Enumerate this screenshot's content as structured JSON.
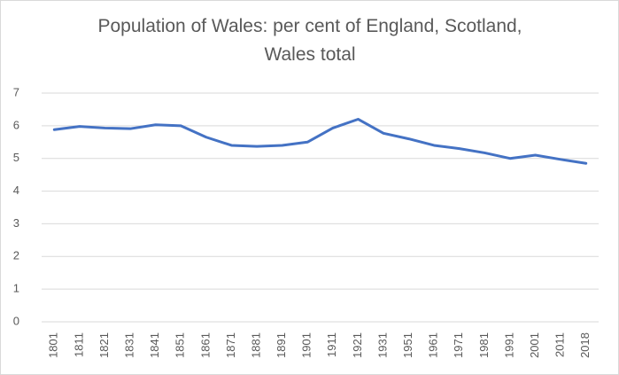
{
  "chart_data": {
    "type": "line",
    "title": "Population of Wales: per cent of England, Scotland, Wales total",
    "categories": [
      "1801",
      "1811",
      "1821",
      "1831",
      "1841",
      "1851",
      "1861",
      "1871",
      "1881",
      "1891",
      "1901",
      "1911",
      "1921",
      "1931",
      "1951",
      "1961",
      "1971",
      "1981",
      "1991",
      "2001",
      "2011",
      "2018"
    ],
    "series": [
      {
        "name": "Wales",
        "color": "#4472c4",
        "values": [
          5.88,
          5.98,
          5.93,
          5.91,
          6.03,
          6.0,
          5.65,
          5.4,
          5.37,
          5.4,
          5.5,
          5.93,
          6.2,
          5.77,
          5.6,
          5.4,
          5.3,
          5.17,
          5.0,
          5.1,
          4.97,
          4.85
        ]
      }
    ],
    "ylim": [
      0,
      7
    ],
    "yticks": [
      0,
      1,
      2,
      3,
      4,
      5,
      6,
      7
    ],
    "grid": true
  }
}
